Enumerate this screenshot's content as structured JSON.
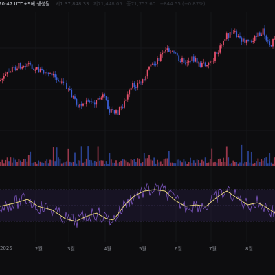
{
  "header": {
    "timestamp": "20:47 UTC+9에 생성됨",
    "ohlc_faded_1": "시1.37,848.33",
    "ohlc_faded_2": "저71,448.05",
    "ohlc_faded_3": "종71,752.60",
    "ohlc_faded_4": "+844.55 (+0.87%)"
  },
  "axis": {
    "x_labels": [
      "2025",
      "2월",
      "3월",
      "4월",
      "5월",
      "6월",
      "7월",
      "8월"
    ]
  },
  "colors": {
    "background": "#0d0d0f",
    "up_candle": "#e5506b",
    "down_candle": "#3b5fd6",
    "rsi_line": "#7e57c2",
    "rsi_ma": "#e8d77c",
    "rsi_band": "#2a1f4a"
  }
}
